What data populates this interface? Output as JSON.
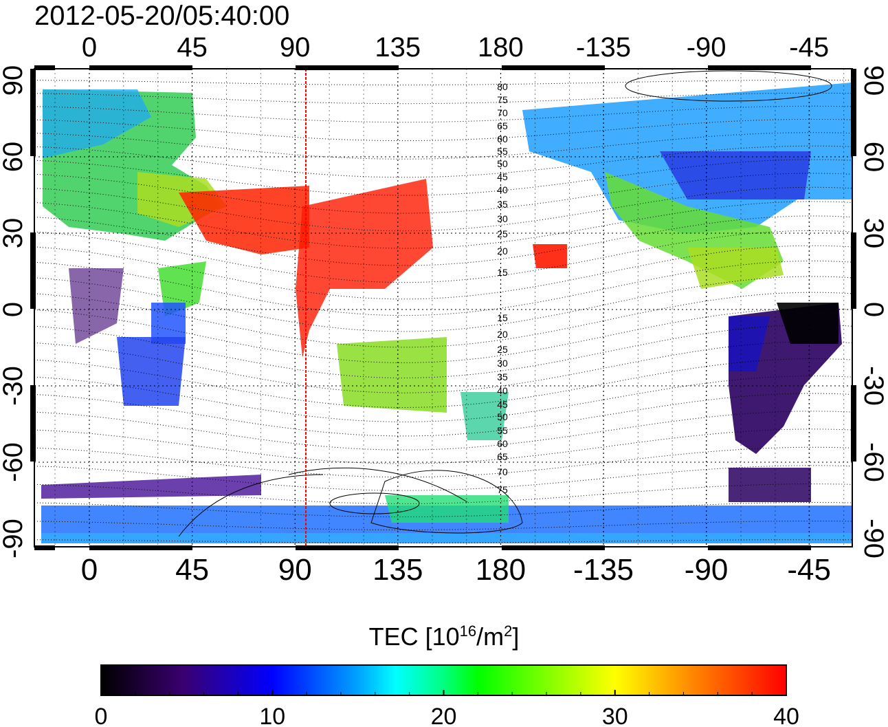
{
  "title": "2012-05-20/05:40:00",
  "map": {
    "lon_ticks": [
      "0",
      "45",
      "90",
      "135",
      "180",
      "-135",
      "-90",
      "-45"
    ],
    "lat_ticks": [
      "90",
      "60",
      "30",
      "0",
      "-30",
      "-60",
      "-90"
    ],
    "contour_labels": [
      "80",
      "75",
      "70",
      "65",
      "60",
      "55",
      "50",
      "45",
      "40",
      "35",
      "30",
      "25",
      "20",
      "15",
      "15",
      "20",
      "25",
      "30",
      "35",
      "40",
      "45",
      "50",
      "55",
      "60",
      "65",
      "70",
      "75"
    ],
    "terminator_longitude": 95
  },
  "colorbar": {
    "title_main": "TEC  [10",
    "title_sup": "16",
    "title_mid": "/m",
    "title_sup2": "2",
    "title_end": "]",
    "ticks": [
      "0",
      "10",
      "20",
      "30",
      "40"
    ],
    "range": [
      0,
      40
    ]
  },
  "colors": {
    "terminator": "#ff0000",
    "scale": [
      "#000000",
      "#3a0070",
      "#0000ff",
      "#00ffff",
      "#00ff00",
      "#ffff00",
      "#ff8000",
      "#ff0000"
    ]
  }
}
